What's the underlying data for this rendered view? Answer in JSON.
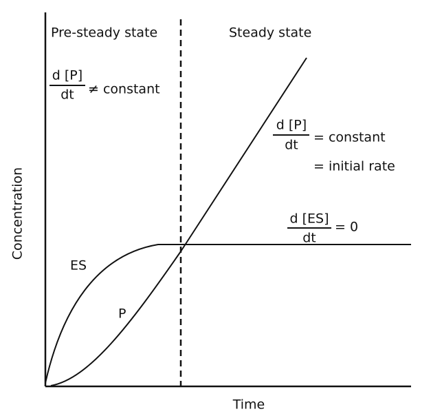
{
  "regions": {
    "pre_steady": "Pre-steady state",
    "steady": "Steady state"
  },
  "equations": [
    {
      "numerator": "d [P]",
      "denominator": "dt",
      "relation": "≠ constant"
    },
    {
      "numerator": "d [P]",
      "denominator": "dt",
      "relation": "= constant",
      "relation2": "= initial rate"
    },
    {
      "numerator": "d [ES]",
      "denominator": "dt",
      "relation": "= 0"
    }
  ],
  "curves": {
    "es": "ES",
    "p": "P"
  },
  "axes": {
    "y": "Concentration",
    "x": "Time"
  }
}
